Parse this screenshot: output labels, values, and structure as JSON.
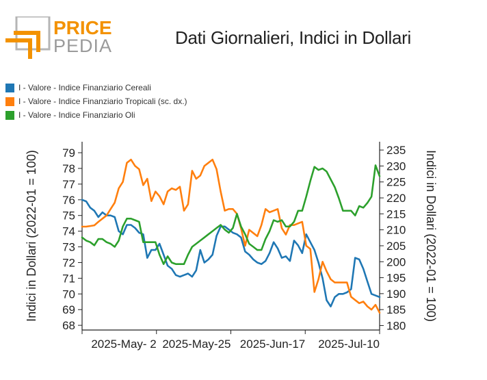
{
  "logo": {
    "word1": "PRICE",
    "word2": "PEDIA"
  },
  "chart_data": {
    "type": "line",
    "title": "Dati Giornalieri, Indici in Dollari",
    "ylabel": "Indici in Dollari (2022-01 = 100)",
    "y2label": "Indici in Dollari (2022-01 = 100)",
    "ylim": [
      67.7,
      79.7
    ],
    "y2lim": [
      178.6,
      237.6
    ],
    "yticks": [
      "68",
      "69",
      "70",
      "71",
      "72",
      "73",
      "74",
      "75",
      "76",
      "77",
      "78",
      "79"
    ],
    "y2ticks": [
      "180",
      "185",
      "190",
      "195",
      "200",
      "205",
      "210",
      "215",
      "220",
      "225",
      "230",
      "235"
    ],
    "xtick_labels": [
      "2025-May- 2",
      "2025-May-25",
      "2025-Jun-17",
      "2025-Jul-10"
    ],
    "legend_position": "top-left",
    "colors": {
      "cereali": "#1f77b4",
      "tropicali": "#ff7f0e",
      "oli": "#2ca02c"
    },
    "series": [
      {
        "name": "I - Valore - Indice Finanziario Cereali",
        "axis": "left",
        "color": "#1f77b4",
        "values": [
          76.0,
          75.9,
          75.5,
          75.3,
          74.9,
          75.2,
          75.0,
          75.0,
          74.9,
          74.0,
          73.8,
          74.4,
          74.4,
          74.2,
          73.9,
          73.8,
          72.3,
          72.8,
          72.8,
          73.2,
          72.5,
          71.8,
          71.6,
          71.2,
          71.1,
          71.2,
          71.3,
          71.1,
          71.5,
          72.8,
          72.0,
          72.2,
          72.5,
          73.7,
          74.3,
          74.3,
          74.1,
          73.9,
          73.8,
          73.6,
          72.7,
          72.5,
          72.2,
          72.0,
          71.9,
          72.1,
          72.6,
          73.3,
          72.9,
          72.3,
          72.4,
          72.1,
          73.4,
          73.1,
          72.6,
          73.8,
          73.3,
          72.8,
          72.0,
          71.0,
          69.6,
          69.2,
          69.8,
          70.0,
          70.0,
          70.1,
          70.3,
          72.3,
          72.2,
          71.6,
          70.8,
          70.0,
          69.9,
          69.8
        ]
      },
      {
        "name": "I - Valore - Indice Finanziario Tropicali (sc. dx.)",
        "axis": "right",
        "color": "#ff7f0e",
        "values": [
          211,
          211,
          211.2,
          211.4,
          212.5,
          213.5,
          214.5,
          216.5,
          218.5,
          223,
          225,
          231,
          232,
          230,
          229,
          224,
          226,
          219,
          222,
          220.5,
          218,
          222,
          223,
          222.5,
          223.5,
          216,
          218,
          228.5,
          226,
          227,
          230,
          231,
          232,
          229,
          222,
          216,
          216.5,
          216.5,
          215,
          210.5,
          205,
          210,
          209,
          208,
          211.5,
          216.5,
          215.5,
          216,
          216.5,
          210.5,
          208.5,
          211.5,
          211.5,
          212,
          212.5,
          205,
          204,
          190.5,
          194.5,
          200,
          197,
          194.5,
          193.5,
          193.5,
          193.5,
          193.5,
          189,
          188,
          187,
          187.5,
          186,
          185,
          186.5,
          184
        ]
      },
      {
        "name": "I - Valore - Indice Finanziario Oli",
        "axis": "left",
        "color": "#2ca02c",
        "values": [
          73.6,
          73.4,
          73.3,
          73.1,
          73.5,
          73.5,
          73.3,
          73.2,
          73.0,
          73.4,
          74.3,
          74.8,
          74.8,
          74.7,
          74.6,
          73.3,
          73.3,
          73.3,
          73.3,
          72.5,
          71.9,
          72.4,
          72.0,
          71.9,
          71.9,
          71.9,
          72.5,
          73.0,
          73.2,
          73.4,
          73.6,
          73.8,
          74.0,
          74.2,
          74.4,
          74.1,
          73.9,
          74.2,
          75.1,
          74.3,
          73.8,
          73.2,
          73.0,
          72.8,
          72.8,
          73.5,
          74.0,
          74.7,
          74.6,
          74.7,
          74.3,
          74.3,
          74.6,
          75.3,
          75.3,
          76.2,
          77.2,
          78.1,
          77.9,
          78.0,
          77.8,
          77.3,
          76.8,
          76.1,
          75.3,
          75.3,
          75.3,
          75.0,
          75.6,
          75.5,
          75.8,
          76.2,
          78.2,
          77.5
        ]
      }
    ]
  }
}
